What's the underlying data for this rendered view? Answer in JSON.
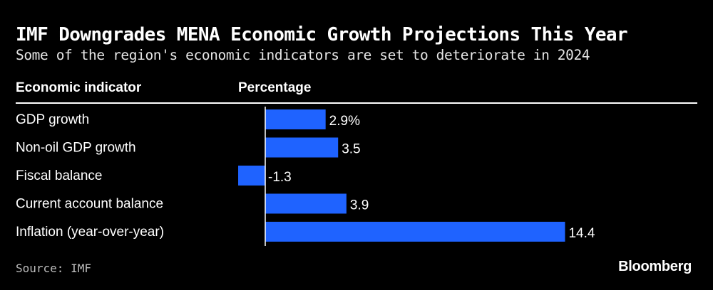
{
  "header": {
    "title": "IMF Downgrades MENA Economic Growth Projections This Year",
    "subtitle": "Some of the region's economic indicators are set to deteriorate in 2024"
  },
  "columns": {
    "indicator": "Economic indicator",
    "percentage": "Percentage"
  },
  "footer": {
    "source": "Source: IMF",
    "brand": "Bloomberg"
  },
  "colors": {
    "bar": "#1f63ff",
    "background": "#000000",
    "text": "#ffffff"
  },
  "chart_data": {
    "type": "bar",
    "orientation": "horizontal",
    "categories": [
      "GDP growth",
      "Non-oil GDP growth",
      "Fiscal balance",
      "Current account balance",
      "Inflation (year-over-year)"
    ],
    "values": [
      2.9,
      3.5,
      -1.3,
      3.9,
      14.4
    ],
    "value_labels": [
      "2.9%",
      "3.5",
      "-1.3",
      "3.9",
      "14.4"
    ],
    "unit": "%",
    "xlim": [
      -1.3,
      14.4
    ],
    "grid": false,
    "legend": "none"
  }
}
